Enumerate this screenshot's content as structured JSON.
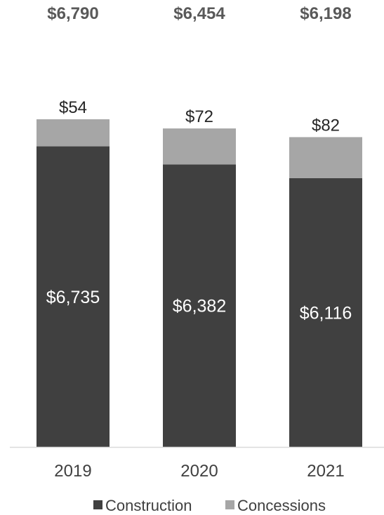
{
  "chart_data": {
    "type": "bar",
    "stacked": true,
    "categories": [
      "2019",
      "2020",
      "2021"
    ],
    "series": [
      {
        "name": "Construction",
        "values": [
          6735,
          6382,
          6116
        ],
        "labels": [
          "$6,735",
          "$6,382",
          "$6,116"
        ],
        "color": "#404040"
      },
      {
        "name": "Concessions",
        "values": [
          54,
          72,
          82
        ],
        "labels": [
          "$54",
          "$72",
          "$82"
        ],
        "color": "#a6a6a6"
      }
    ],
    "totals": [
      "$6,790",
      "$6,454",
      "$6,198"
    ],
    "title": "",
    "xlabel": "",
    "ylabel": "",
    "legend": "bottom",
    "grid": false
  }
}
